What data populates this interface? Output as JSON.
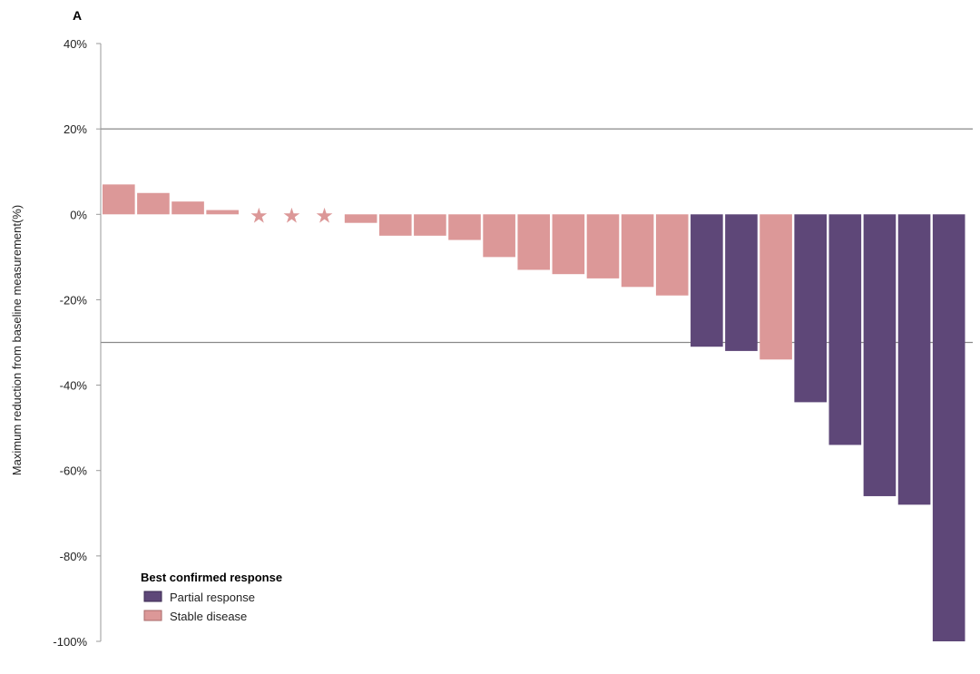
{
  "panel_label": "A",
  "chart_data": {
    "type": "bar",
    "title": "",
    "xlabel": "",
    "ylabel": "Maximum reduction from baseline measurement(%)",
    "ylim": [
      -100,
      40
    ],
    "yticks": [
      40,
      20,
      0,
      -20,
      -40,
      -60,
      -80,
      -100
    ],
    "ytick_labels": [
      "40%",
      "20%",
      "0%",
      "-20%",
      "-40%",
      "-60%",
      "-80%",
      "-100%"
    ],
    "reference_lines": [
      20,
      -30
    ],
    "colors": {
      "Partial response": "#5e4778",
      "Stable disease": "#dc9898"
    },
    "legend": {
      "title": "Best confirmed response",
      "position": "bottom-left",
      "entries": [
        "Partial response",
        "Stable disease"
      ]
    },
    "values": [
      7,
      5,
      3,
      1,
      null,
      null,
      null,
      -2,
      -5,
      -5,
      -6,
      -10,
      -13,
      -14,
      -15,
      -17,
      -19,
      -31,
      -32,
      -34,
      -44,
      -54,
      -66,
      -68,
      -100
    ],
    "response": [
      "Stable disease",
      "Stable disease",
      "Stable disease",
      "Stable disease",
      "Stable disease",
      "Stable disease",
      "Stable disease",
      "Stable disease",
      "Stable disease",
      "Stable disease",
      "Stable disease",
      "Stable disease",
      "Stable disease",
      "Stable disease",
      "Stable disease",
      "Stable disease",
      "Stable disease",
      "Partial response",
      "Partial response",
      "Stable disease",
      "Partial response",
      "Partial response",
      "Partial response",
      "Partial response",
      "Partial response"
    ],
    "markers": [
      "",
      "",
      "",
      "",
      "★",
      "★",
      "★",
      "",
      "",
      "",
      "",
      "",
      "",
      "",
      "",
      "",
      "",
      "",
      "",
      "",
      "",
      "",
      "",
      "",
      ""
    ]
  }
}
